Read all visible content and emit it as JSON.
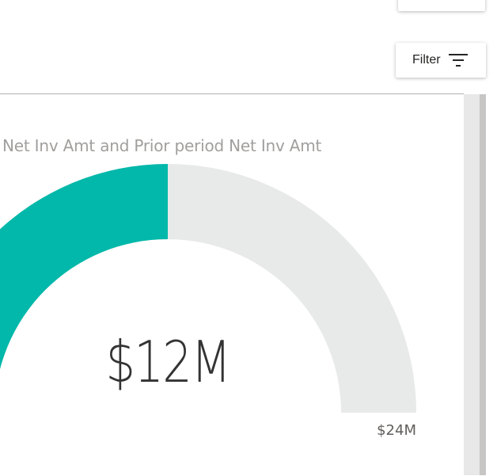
{
  "toolbar": {
    "filter_label": "Filter",
    "filter_icon": "filter-icon"
  },
  "visual": {
    "title": "Net Inv Amt and Prior period Net Inv Amt",
    "gauge_value_label": "$12M",
    "gauge_max_label": "$24M",
    "gauge_value": 12,
    "gauge_min": 0,
    "gauge_max": 24,
    "fill_color": "#01B8AA",
    "track_color": "#E8E9E9"
  }
}
